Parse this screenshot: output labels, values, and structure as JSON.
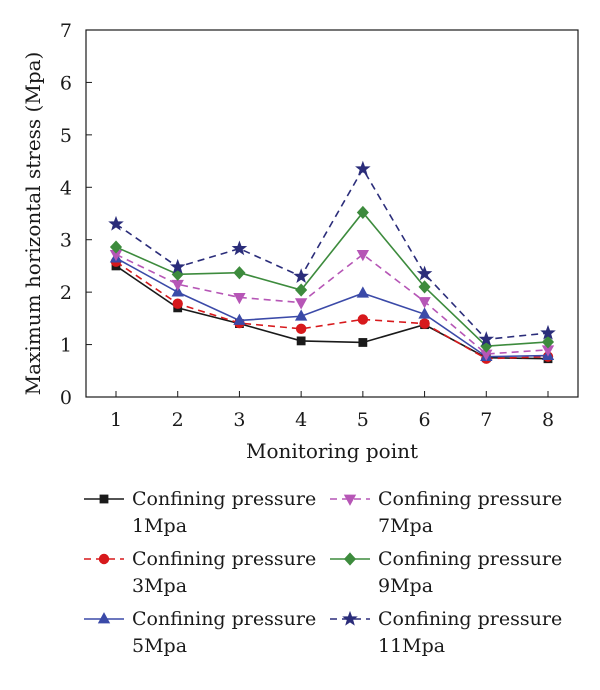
{
  "chart_data": {
    "type": "line",
    "xlabel": "Monitoring point",
    "ylabel": "Maximum horizontal stress (Mpa)",
    "x": [
      1,
      2,
      3,
      4,
      5,
      6,
      7,
      8
    ],
    "ylim": [
      0,
      7
    ],
    "yticks": [
      0,
      1,
      2,
      3,
      4,
      5,
      6,
      7
    ],
    "grid": false,
    "legend_position": "bottom",
    "series": [
      {
        "name": "Confining pressure 1Mpa",
        "line1": "Confining pressure",
        "line2": "1Mpa",
        "color": "#1a1a1a",
        "dashed": false,
        "marker": "square",
        "values": [
          2.5,
          1.7,
          1.4,
          1.07,
          1.04,
          1.38,
          0.75,
          0.73
        ]
      },
      {
        "name": "Confining pressure 3Mpa",
        "line1": "Confining pressure",
        "line2": "3Mpa",
        "color": "#d7191c",
        "dashed": true,
        "marker": "circle",
        "values": [
          2.58,
          1.78,
          1.41,
          1.3,
          1.48,
          1.4,
          0.73,
          0.77
        ]
      },
      {
        "name": "Confining pressure 5Mpa",
        "line1": "Confining pressure",
        "line2": "5Mpa",
        "color": "#3b4aa8",
        "dashed": false,
        "marker": "triangle-up",
        "values": [
          2.65,
          2.0,
          1.46,
          1.54,
          1.98,
          1.58,
          0.77,
          0.79
        ]
      },
      {
        "name": "Confining pressure 7Mpa",
        "line1": "Confining pressure",
        "line2": "7Mpa",
        "color": "#b656b6",
        "dashed": true,
        "marker": "triangle-down",
        "values": [
          2.72,
          2.15,
          1.9,
          1.8,
          2.72,
          1.82,
          0.82,
          0.9
        ]
      },
      {
        "name": "Confining pressure 9Mpa",
        "line1": "Confining pressure",
        "line2": "9Mpa",
        "color": "#3d8b3d",
        "dashed": false,
        "marker": "diamond",
        "values": [
          2.86,
          2.34,
          2.37,
          2.04,
          3.52,
          2.1,
          0.97,
          1.05
        ]
      },
      {
        "name": "Confining pressure 11Mpa",
        "line1": "Confining pressure",
        "line2": "11Mpa",
        "color": "#2b2d7a",
        "dashed": true,
        "marker": "star",
        "values": [
          3.3,
          2.48,
          2.83,
          2.3,
          4.35,
          2.35,
          1.1,
          1.22
        ]
      }
    ]
  }
}
